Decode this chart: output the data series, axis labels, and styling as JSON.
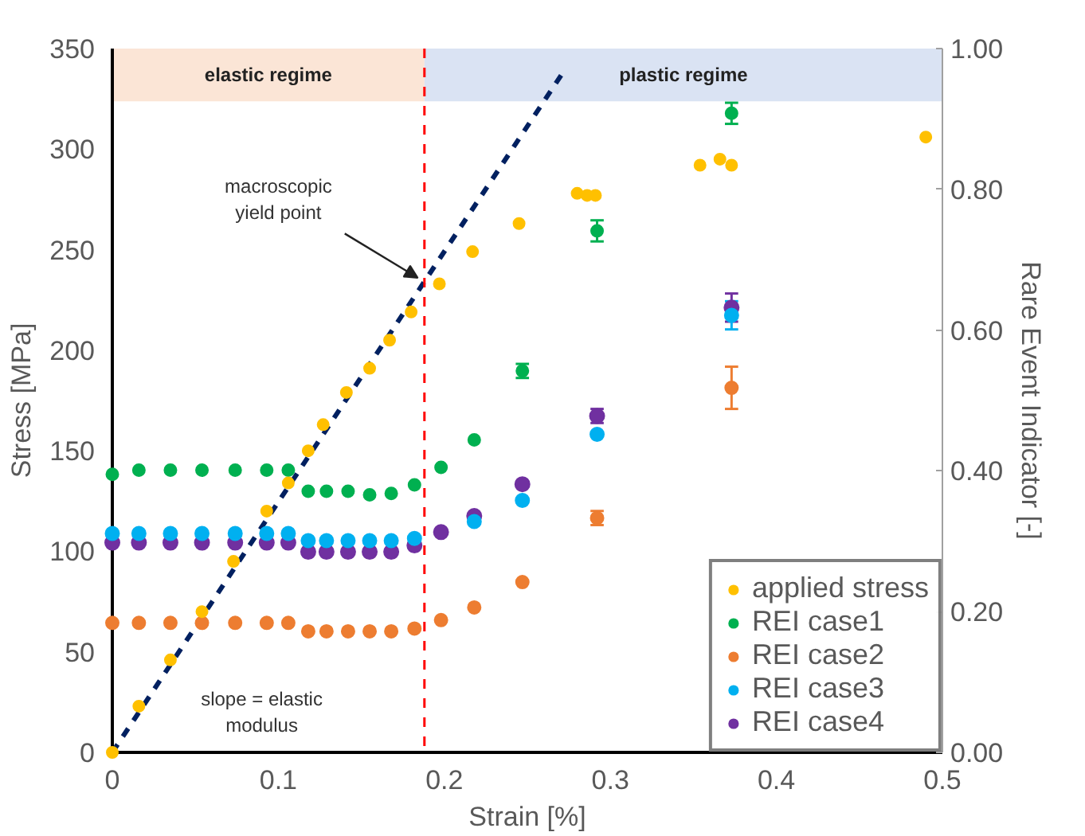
{
  "chart_data": {
    "type": "scatter",
    "xlabel": "Strain [%]",
    "ylabel": "Stress [MPa]",
    "y2label": "Rare Event Indicator [-]",
    "xlim": [
      0,
      0.5
    ],
    "xticks": [
      0,
      0.1,
      0.2,
      0.3,
      0.4,
      0.5
    ],
    "ylim": [
      0,
      350
    ],
    "yticks": [
      0,
      50,
      100,
      150,
      200,
      250,
      300,
      350
    ],
    "y2lim": [
      0,
      1
    ],
    "y2ticks": [
      {
        "value": 0,
        "label": "0.00"
      },
      {
        "value": 0.2,
        "label": "0.20"
      },
      {
        "value": 0.4,
        "label": "0.40"
      },
      {
        "value": 0.6,
        "label": "0.60"
      },
      {
        "value": 0.8,
        "label": "0.80"
      },
      {
        "value": 1,
        "label": "1.00"
      }
    ],
    "grid": false,
    "legend": "bottom right",
    "marker": "circle",
    "bands": [
      {
        "axis": "x",
        "from": 0,
        "to": 0.188,
        "label": "elastic regime",
        "color": "#fbe5d6"
      },
      {
        "axis": "x",
        "from": 0.188,
        "to": 0.5,
        "label": "plastic regime",
        "color": "#dae3f3"
      }
    ],
    "ref_lines": [
      {
        "axis": "x",
        "value": 0.188,
        "color": "#ff0000",
        "line_style": "dashed"
      }
    ],
    "annotations": [
      "macroscopic\nyield point",
      "slope = elastic\nmodulus"
    ],
    "series": [
      {
        "name": "applied stress",
        "color": "#ffc000",
        "x": [
          0,
          0.016,
          0.035,
          0.054,
          0.073,
          0.093,
          0.106,
          0.118,
          0.127,
          0.141,
          0.155,
          0.167,
          0.18,
          0.197,
          0.217,
          0.245,
          0.28,
          0.286,
          0.291,
          0.354,
          0.366,
          0.373,
          0.49
        ],
        "values": [
          0,
          23,
          46,
          70,
          95,
          120,
          134,
          150,
          163,
          179,
          191,
          205,
          219,
          233,
          249,
          263,
          278,
          277,
          277,
          292,
          295,
          292,
          306
        ]
      },
      {
        "name": "REI case1",
        "color": "#00b050",
        "axis": "y2",
        "x": [
          0,
          0.016,
          0.035,
          0.054,
          0.074,
          0.093,
          0.106,
          0.118,
          0.129,
          0.142,
          0.155,
          0.168,
          0.182,
          0.198,
          0.218,
          0.247,
          0.292,
          0.373
        ],
        "values": [
          0.395,
          0.401,
          0.401,
          0.401,
          0.401,
          0.401,
          0.401,
          0.371,
          0.371,
          0.371,
          0.366,
          0.368,
          0.38,
          0.405,
          0.444,
          0.542,
          0.741,
          0.908
        ],
        "errors": [
          null,
          null,
          null,
          null,
          null,
          null,
          null,
          null,
          null,
          null,
          null,
          null,
          null,
          null,
          null,
          0.01,
          0.015,
          0.015
        ]
      },
      {
        "name": "REI case2",
        "color": "#ed7d31",
        "axis": "y2",
        "x": [
          0,
          0.016,
          0.035,
          0.054,
          0.074,
          0.093,
          0.106,
          0.118,
          0.129,
          0.142,
          0.155,
          0.168,
          0.182,
          0.198,
          0.218,
          0.247,
          0.292,
          0.373
        ],
        "values": [
          0.184,
          0.184,
          0.184,
          0.184,
          0.184,
          0.184,
          0.184,
          0.172,
          0.172,
          0.172,
          0.172,
          0.172,
          0.176,
          0.188,
          0.206,
          0.242,
          0.333,
          0.518
        ],
        "errors": [
          null,
          null,
          null,
          null,
          null,
          null,
          null,
          null,
          null,
          null,
          null,
          null,
          null,
          null,
          null,
          null,
          0.01,
          0.03
        ]
      },
      {
        "name": "REI case3",
        "color": "#00b0f0",
        "axis": "y2",
        "x": [
          0,
          0.016,
          0.035,
          0.054,
          0.074,
          0.093,
          0.106,
          0.118,
          0.129,
          0.142,
          0.155,
          0.168,
          0.182,
          0.198,
          0.218,
          0.247,
          0.292,
          0.373
        ],
        "values": [
          0.311,
          0.311,
          0.311,
          0.311,
          0.311,
          0.311,
          0.311,
          0.301,
          0.301,
          0.301,
          0.301,
          0.301,
          0.304,
          null,
          0.328,
          0.358,
          0.452,
          0.621
        ],
        "errors": [
          null,
          null,
          null,
          null,
          null,
          null,
          null,
          null,
          null,
          null,
          null,
          null,
          null,
          null,
          null,
          null,
          null,
          0.02
        ]
      },
      {
        "name": "REI case4",
        "color": "#7030a0",
        "axis": "y2",
        "x": [
          0,
          0.016,
          0.035,
          0.054,
          0.074,
          0.093,
          0.106,
          0.118,
          0.129,
          0.142,
          0.155,
          0.168,
          0.182,
          0.198,
          0.218,
          0.247,
          0.292,
          0.373
        ],
        "values": [
          0.298,
          0.298,
          0.298,
          0.298,
          0.298,
          0.298,
          0.298,
          0.285,
          0.285,
          0.285,
          0.285,
          0.285,
          0.294,
          0.313,
          0.336,
          0.381,
          0.478,
          0.632
        ],
        "errors": [
          null,
          null,
          null,
          null,
          null,
          null,
          null,
          null,
          null,
          null,
          null,
          null,
          null,
          null,
          null,
          null,
          0.01,
          0.02
        ]
      },
      {
        "type": "line",
        "color": "#002060",
        "line_style": "dashed",
        "marker": "none",
        "x": [
          0,
          0.273
        ],
        "values": [
          0,
          340
        ]
      }
    ]
  }
}
